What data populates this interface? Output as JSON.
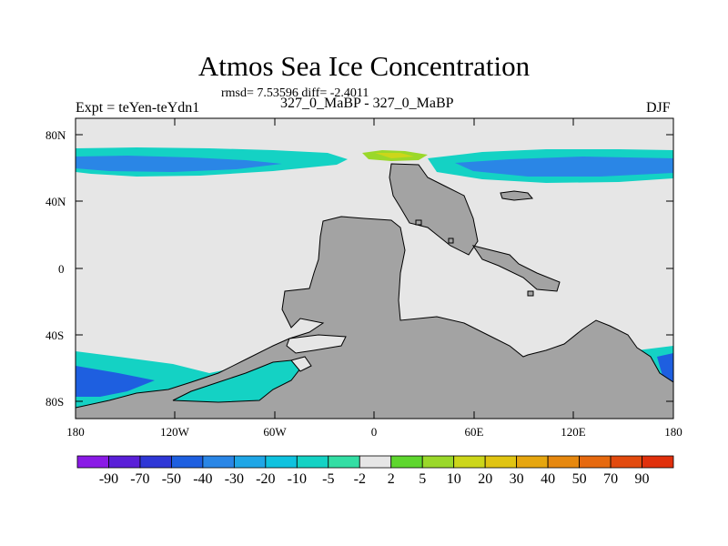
{
  "title": "Atmos Sea Ice Concentration",
  "stats_text": "rmsd= 7.53596 diff= -2.4011",
  "left_label": "Expt = teYen-teYdn1",
  "center_label": "327_0_MaBP - 327_0_MaBP",
  "right_label": "DJF",
  "y_ticks": [
    "80N",
    "40N",
    "0",
    "40S",
    "80S"
  ],
  "x_ticks": [
    "180",
    "120W",
    "60W",
    "0",
    "60E",
    "120E",
    "180"
  ],
  "colorbar": {
    "labels": [
      "-90",
      "-70",
      "-50",
      "-40",
      "-30",
      "-20",
      "-10",
      "-5",
      "-2",
      "2",
      "5",
      "10",
      "20",
      "30",
      "40",
      "50",
      "70",
      "90"
    ],
    "colors": [
      "#8a1ae6",
      "#5a1fd8",
      "#2f37d6",
      "#1e5fe0",
      "#2a86e6",
      "#1fa6e6",
      "#0fc2df",
      "#14d2c4",
      "#33dea4",
      "#e6e6e6",
      "#5ed62e",
      "#9ad82a",
      "#ccd61a",
      "#e0c412",
      "#e6a60f",
      "#e6880f",
      "#e6690f",
      "#e24a0e",
      "#e0300c"
    ]
  },
  "colors": {
    "land": "#a3a3a3",
    "no_change": "#e6e6e6"
  }
}
